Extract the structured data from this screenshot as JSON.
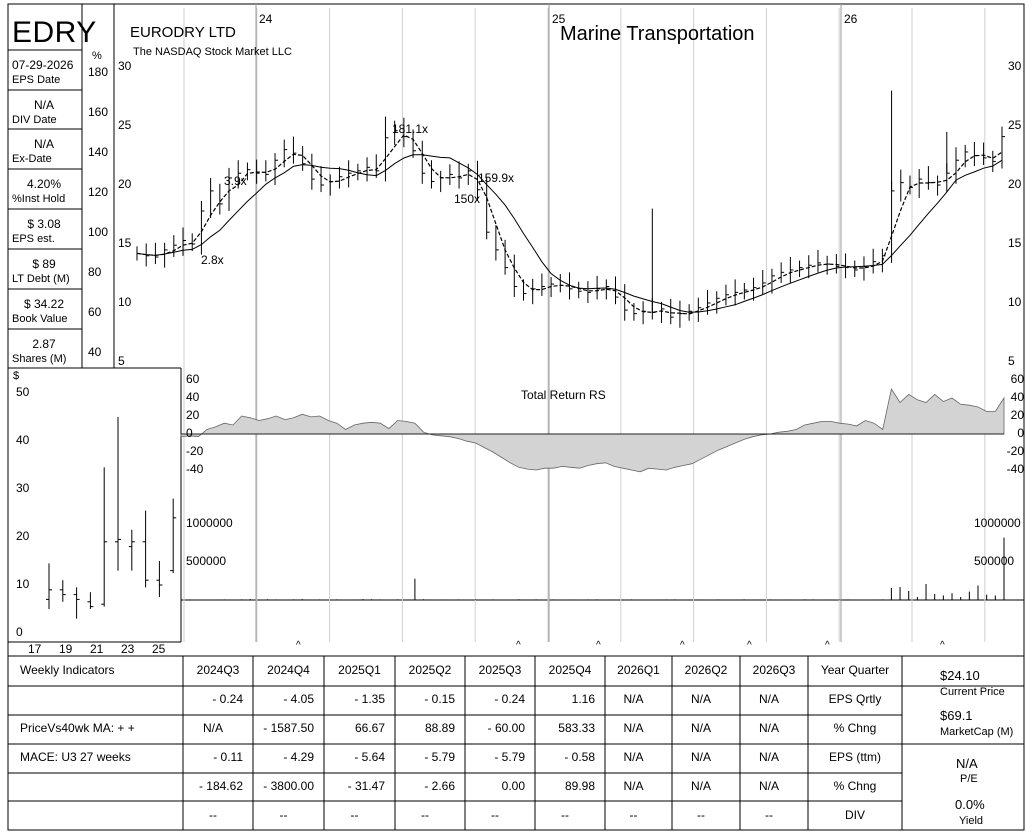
{
  "header": {
    "ticker": "EDRY",
    "company": "EURODRY LTD",
    "exchange": "The NASDAQ Stock Market LLC",
    "industry": "Marine Transportation",
    "pct_symbol": "%",
    "dollar_symbol": "$"
  },
  "left_stats": [
    {
      "value": "07-29-2026",
      "label": "EPS Date"
    },
    {
      "value": "N/A",
      "label": "DIV Date"
    },
    {
      "value": "N/A",
      "label": "Ex-Date"
    },
    {
      "value": "4.20%",
      "label": "%Inst Hold"
    },
    {
      "value": "$ 3.08",
      "label": "EPS est."
    },
    {
      "value": "$ 89",
      "label": "LT Debt (M)"
    },
    {
      "value": "$ 34.22",
      "label": "Book Value"
    },
    {
      "value": "2.87",
      "label": "Shares (M)"
    }
  ],
  "pct_scale": [
    "180",
    "160",
    "140",
    "120",
    "100",
    "80",
    "60",
    "40"
  ],
  "chart_data": [
    {
      "type": "ohlc",
      "name": "weekly price",
      "year_markers": [
        "24",
        "25",
        "26"
      ],
      "y_ticks": [
        "30",
        "25",
        "20",
        "15",
        "10",
        "5"
      ],
      "ylim": [
        5,
        30
      ],
      "price_close_approx": [
        14.2,
        14.0,
        13.9,
        14.5,
        14.9,
        15.3,
        15.0,
        17.8,
        19.5,
        18.4,
        20.6,
        21.0,
        21.3,
        21.0,
        20.9,
        22.1,
        23.0,
        22.7,
        21.8,
        20.5,
        20.0,
        20.3,
        20.7,
        21.0,
        21.2,
        21.5,
        21.2,
        24.0,
        24.6,
        24.1,
        22.9,
        21.0,
        20.3,
        20.6,
        20.9,
        20.6,
        21.2,
        19.6,
        16.0,
        14.5,
        13.0,
        11.4,
        10.8,
        11.2,
        11.4,
        11.6,
        11.5,
        11.2,
        11.0,
        10.9,
        11.2,
        11.4,
        10.5,
        9.4,
        9.1,
        9.3,
        9.2,
        9.5,
        8.8,
        9.1,
        9.3,
        9.6,
        10.0,
        10.4,
        10.7,
        10.9,
        11.1,
        11.3,
        11.7,
        12.3,
        12.6,
        12.8,
        13.0,
        13.2,
        13.4,
        13.3,
        13.1,
        13.0,
        12.8,
        13.1,
        13.5,
        14.0,
        19.5,
        20.2,
        19.8,
        20.5,
        20.2,
        20.0,
        21.0,
        22.1,
        22.8,
        22.5,
        22.3,
        22.0,
        24.1
      ],
      "annotations": [
        {
          "text": "3.9x"
        },
        {
          "text": "2.8x"
        },
        {
          "text": "181.1x"
        },
        {
          "text": "150x"
        },
        {
          "text": "159.9x"
        }
      ],
      "moving_averages": [
        "10-week (dashed)",
        "40-week (solid)"
      ]
    },
    {
      "type": "area",
      "name": "Total Return RS",
      "title": "Total Return RS",
      "y_ticks": [
        "60",
        "40",
        "20",
        "0",
        "-20",
        "-40"
      ],
      "ylim": [
        -50,
        70
      ],
      "values_approx": [
        -3,
        -2,
        -3,
        5,
        8,
        12,
        10,
        20,
        18,
        15,
        17,
        20,
        16,
        18,
        22,
        19,
        20,
        15,
        12,
        5,
        10,
        12,
        13,
        12,
        6,
        15,
        14,
        12,
        2,
        -1,
        -2,
        -3,
        -5,
        -8,
        -10,
        -15,
        -20,
        -26,
        -32,
        -37,
        -39,
        -40,
        -38,
        -38,
        -36,
        -37,
        -38,
        -35,
        -33,
        -32,
        -36,
        -38,
        -40,
        -42,
        -38,
        -39,
        -40,
        -37,
        -35,
        -33,
        -28,
        -23,
        -18,
        -14,
        -10,
        -6,
        -3,
        -1,
        0,
        2,
        3,
        5,
        10,
        12,
        14,
        14,
        12,
        11,
        9,
        15,
        12,
        5,
        50,
        35,
        44,
        38,
        35,
        44,
        36,
        40,
        33,
        32,
        30,
        25,
        25,
        40
      ]
    },
    {
      "type": "bar",
      "name": "weekly volume",
      "y_ticks": [
        "1000000",
        "500000"
      ],
      "ylim": [
        0,
        1100000
      ],
      "values_approx": [
        5000,
        8000,
        4000,
        6000,
        5000,
        8000,
        6000,
        9000,
        12000,
        7000,
        10000,
        8000,
        6000,
        9000,
        11000,
        7000,
        8000,
        5000,
        9000,
        6000,
        7000,
        12000,
        10000,
        8000,
        6000,
        9000,
        7000,
        280000,
        10000,
        6000,
        7000,
        5000,
        8000,
        6000,
        9000,
        7000,
        8000,
        6000,
        5000,
        10000,
        7000,
        9000,
        6000,
        8000,
        5000,
        7000,
        6000,
        8000,
        9000,
        5000,
        7000,
        6000,
        8000,
        5000,
        6000,
        7000,
        8000,
        9000,
        6000,
        5000,
        7000,
        6000,
        8000,
        5000,
        6000,
        9000,
        7000,
        6000,
        8000,
        5000,
        7000,
        6000,
        9000,
        8000,
        5000,
        7000,
        6000,
        8000,
        6000,
        5000,
        7000,
        9000,
        160000,
        170000,
        120000,
        40000,
        210000,
        80000,
        60000,
        90000,
        40000,
        110000,
        190000,
        70000,
        60000,
        820000
      ]
    },
    {
      "type": "ohlc",
      "name": "annual price",
      "x_ticks": [
        "17",
        "19",
        "21",
        "23",
        "25"
      ],
      "y_ticks": [
        "50",
        "40",
        "30",
        "20",
        "10",
        "0"
      ],
      "ylim": [
        0,
        52
      ],
      "bars": [
        {
          "year": "17",
          "high": 14.5,
          "low": 5.0,
          "open": 7.0,
          "close": 9.0
        },
        {
          "year": "18",
          "high": 11.0,
          "low": 6.5,
          "open": 9.0,
          "close": 8.0
        },
        {
          "year": "19",
          "high": 9.5,
          "low": 3.0,
          "open": 8.0,
          "close": 7.0
        },
        {
          "year": "20",
          "high": 8.5,
          "low": 5.0,
          "open": 6.5,
          "close": 5.5
        },
        {
          "year": "21",
          "high": 34.5,
          "low": 5.5,
          "open": 6.0,
          "close": 19.0
        },
        {
          "year": "22",
          "high": 45.0,
          "low": 13.0,
          "open": 19.0,
          "close": 19.5
        },
        {
          "year": "23",
          "high": 21.5,
          "low": 13.0,
          "open": 18.0,
          "close": 19.0
        },
        {
          "year": "24",
          "high": 25.5,
          "low": 9.5,
          "open": 19.0,
          "close": 11.0
        },
        {
          "year": "25",
          "high": 15.0,
          "low": 7.5,
          "open": 11.0,
          "close": 10.0
        },
        {
          "year": "26",
          "high": 28.0,
          "low": 12.5,
          "open": 13.0,
          "close": 24.0
        }
      ]
    }
  ],
  "quarters": [
    "2024Q3",
    "2024Q4",
    "2025Q1",
    "2025Q2",
    "2025Q3",
    "2025Q4",
    "2026Q1",
    "2026Q2",
    "2026Q3"
  ],
  "caret": "^",
  "table": {
    "row_labels": [
      "Weekly Indicators",
      "",
      "PriceVs40wk MA:  + +",
      "MACE: U3  27 weeks",
      "",
      ""
    ],
    "right_labels": [
      "Year Quarter",
      "EPS Qrtly",
      "% Chng",
      "EPS (ttm)",
      "% Chng",
      "DIV"
    ],
    "rows": [
      [
        "- 0.24",
        "- 4.05",
        "- 1.35",
        "- 0.15",
        "- 0.24",
        "1.16",
        "N/A",
        "N/A",
        "N/A"
      ],
      [
        "N/A",
        "- 1587.50",
        "66.67",
        "88.89",
        "- 60.00",
        "583.33",
        "N/A",
        "N/A",
        "N/A"
      ],
      [
        "- 0.11",
        "- 4.29",
        "- 5.64",
        "- 5.79",
        "- 5.79",
        "- 0.58",
        "N/A",
        "N/A",
        "N/A"
      ],
      [
        "- 184.62",
        "- 3800.00",
        "- 31.47",
        "- 2.66",
        "0.00",
        "89.98",
        "N/A",
        "N/A",
        "N/A"
      ],
      [
        "--",
        "--",
        "--",
        "--",
        "--",
        "--",
        "--",
        "--",
        "--"
      ]
    ]
  },
  "summary": {
    "price": "$24.10",
    "price_label": "Current Price",
    "mcap": "$69.1",
    "mcap_label": "MarketCap (M)",
    "pe": "N/A",
    "pe_label": "P/E",
    "yield": "0.0%",
    "yield_label": "Yield"
  }
}
